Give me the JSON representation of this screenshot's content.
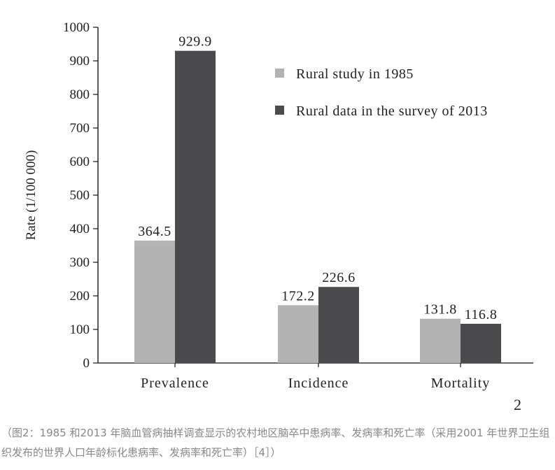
{
  "chart_data": {
    "type": "bar",
    "categories": [
      "Prevalence",
      "Incidence",
      "Mortality"
    ],
    "series": [
      {
        "name": "Rural study in 1985",
        "color": "#b3b3b3",
        "values": [
          364.5,
          172.2,
          131.8
        ],
        "labels": [
          "364.5",
          "172.2",
          "131.8"
        ]
      },
      {
        "name": "Rural data in the survey of 2013",
        "color": "#4b4b4d",
        "values": [
          929.9,
          226.6,
          116.8
        ],
        "labels": [
          "929.9",
          "226.6",
          "116.8"
        ]
      }
    ],
    "ylabel": "Rate (1/100 000)",
    "xlabel": "",
    "ylim": [
      0,
      1000
    ],
    "yticks": [
      0,
      100,
      200,
      300,
      400,
      500,
      600,
      700,
      800,
      900,
      1000
    ],
    "grid": false,
    "legend_position": "top-right"
  },
  "figure_number": "2",
  "caption": "（图2：1985 和2013 年脑血管病抽样调查显示的农村地区脑卒中患病率、发病率和死亡率（采用2001 年世界卫生组织发布的世界人口年龄标化患病率、发病率和死亡率）［4］）"
}
